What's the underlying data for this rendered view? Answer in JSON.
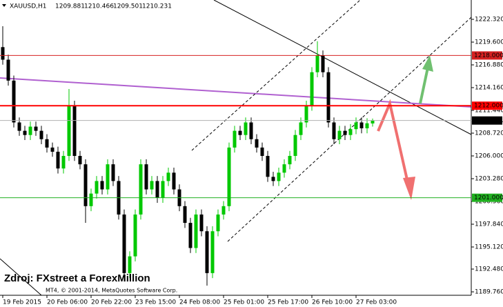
{
  "chart_data": {
    "type": "candlestick",
    "title": "XAUUSD,H1",
    "up_color": "#00c800",
    "down_color": "#000000",
    "x": [
      0,
      1,
      2,
      3,
      4,
      5,
      6,
      7,
      8,
      9,
      10,
      11,
      12,
      13,
      14,
      15,
      16,
      17,
      18,
      19,
      20,
      21,
      22,
      23,
      24,
      25,
      26,
      27,
      28,
      29,
      30,
      31,
      32,
      33,
      34,
      35,
      36,
      37,
      38,
      39,
      40,
      41,
      42,
      43,
      44,
      45,
      46,
      47,
      48,
      49,
      50,
      51,
      52,
      53,
      54,
      55,
      56,
      57,
      58,
      59,
      60,
      61,
      62,
      63,
      64,
      65,
      66,
      67
    ],
    "open": [
      1219,
      1217.5,
      1215,
      1210,
      1209,
      1208.5,
      1209.5,
      1209,
      1208,
      1207,
      1206.5,
      1204.5,
      1206,
      1212,
      1206,
      1205,
      1200,
      1201.5,
      1203,
      1202,
      1205,
      1203,
      1199,
      1192,
      1194,
      1199,
      1205,
      1202,
      1203,
      1201,
      1203,
      1204,
      1202,
      1200,
      1198,
      1195,
      1199,
      1197,
      1192,
      1197,
      1199,
      1200,
      1207,
      1209,
      1208.5,
      1210,
      1208,
      1207,
      1206,
      1203.5,
      1203,
      1204,
      1205,
      1206,
      1208.5,
      1210,
      1212,
      1216,
      1218,
      1216,
      1210,
      1208,
      1209,
      1208.5,
      1209.2,
      1210,
      1209.3,
      1209.881
    ],
    "high": [
      1221.5,
      1218.1,
      1215.6,
      1210.6,
      1209.6,
      1210.1,
      1210.1,
      1209.6,
      1208.6,
      1207.6,
      1207.1,
      1206.6,
      1214,
      1212.6,
      1206.6,
      1205.6,
      1202.1,
      1203.6,
      1203.6,
      1205.6,
      1205.6,
      1203.6,
      1199.6,
      1194.6,
      1199.6,
      1205.6,
      1205.6,
      1203.6,
      1203.6,
      1203.6,
      1204.6,
      1204.6,
      1202.6,
      1200.6,
      1198.6,
      1199.6,
      1199.6,
      1197.6,
      1197.6,
      1199.6,
      1200.6,
      1207.6,
      1209.6,
      1209.6,
      1210.6,
      1210.6,
      1208.6,
      1207.6,
      1206.6,
      1204.1,
      1204.6,
      1205.6,
      1206.6,
      1209.1,
      1210.6,
      1212.6,
      1216.6,
      1219.7,
      1218.6,
      1216.6,
      1210.6,
      1209.6,
      1209.6,
      1209.8,
      1210.6,
      1210.6,
      1210.5,
      1210.466
    ],
    "low": [
      1216.9,
      1214.4,
      1209.4,
      1208.4,
      1207.9,
      1207.9,
      1208.4,
      1207.4,
      1206.4,
      1205.9,
      1203.9,
      1203.9,
      1205.4,
      1205.4,
      1204.4,
      1198,
      1199.4,
      1200.9,
      1201.4,
      1201.4,
      1202.4,
      1198.4,
      1191,
      1191.4,
      1193.4,
      1198.4,
      1201.4,
      1201.4,
      1200.4,
      1200.4,
      1202.4,
      1201.4,
      1199.4,
      1197.4,
      1194.4,
      1194.4,
      1196.4,
      1190.5,
      1191.4,
      1196.4,
      1198.4,
      1199.4,
      1206.4,
      1207.9,
      1207.9,
      1207.4,
      1206.4,
      1205.4,
      1202.9,
      1202.4,
      1202.4,
      1203.4,
      1204.4,
      1205.4,
      1207.9,
      1209.4,
      1211.4,
      1215.4,
      1215.4,
      1209.4,
      1207.4,
      1207.4,
      1207.9,
      1207.9,
      1208.6,
      1208.7,
      1208.7,
      1209.501
    ],
    "close": [
      1217.5,
      1215,
      1210,
      1209,
      1208.5,
      1209.5,
      1209,
      1208,
      1207,
      1206.5,
      1204.5,
      1206,
      1212,
      1206,
      1205,
      1200,
      1201.5,
      1203,
      1202,
      1205,
      1203,
      1199,
      1192,
      1194,
      1199,
      1205,
      1202,
      1203,
      1201,
      1203,
      1204,
      1202,
      1200,
      1198,
      1195,
      1199,
      1197,
      1192,
      1197,
      1199,
      1200,
      1207,
      1209,
      1208.5,
      1210,
      1208,
      1207,
      1206,
      1203.5,
      1203,
      1204,
      1205,
      1206,
      1208.5,
      1210,
      1212,
      1216,
      1218,
      1216,
      1210,
      1208,
      1209,
      1208.5,
      1209.2,
      1210,
      1209.3,
      1209.9,
      1210.231
    ],
    "xlim": [
      -0.5,
      84.875
    ],
    "xticks": [
      {
        "value": 0,
        "label": "19 Feb 2015"
      },
      {
        "value": 8,
        "label": "20 Feb 06:00"
      },
      {
        "value": 16,
        "label": "20 Feb 22:00"
      },
      {
        "value": 24,
        "label": "23 Feb 15:00"
      },
      {
        "value": 32,
        "label": "24 Feb 08:00"
      },
      {
        "value": 40,
        "label": "25 Feb 01:00"
      },
      {
        "value": 48,
        "label": "25 Feb 17:00"
      },
      {
        "value": 56,
        "label": "26 Feb 10:00"
      },
      {
        "value": 64,
        "label": "27 Feb 03:00"
      }
    ],
    "ylim": [
      1189.35,
      1224.63
    ],
    "yticks": [
      {
        "value": 1222.32,
        "label": "1222.320"
      },
      {
        "value": 1219.6,
        "label": "1219.600"
      },
      {
        "value": 1216.88,
        "label": "1216.880"
      },
      {
        "value": 1214.16,
        "label": "1214.160"
      },
      {
        "value": 1211.44,
        "label": "1211.440"
      },
      {
        "value": 1208.72,
        "label": "1208.720"
      },
      {
        "value": 1206,
        "label": "1206.000"
      },
      {
        "value": 1203.28,
        "label": "1203.280"
      },
      {
        "value": 1200.56,
        "label": "1200.560"
      },
      {
        "value": 1197.84,
        "label": "1197.840"
      },
      {
        "value": 1195.12,
        "label": "1195.120"
      },
      {
        "value": 1192.48,
        "label": "1192.480"
      },
      {
        "value": 1189.76,
        "label": "1189.760"
      }
    ],
    "levels": [
      {
        "value": 1218,
        "label": "1218.000",
        "color": "#d42020"
      },
      {
        "value": 1212,
        "label": "1212.000",
        "color": "#ff0000"
      },
      {
        "value": 1201,
        "label": "1201.000",
        "color": "#20b020"
      }
    ],
    "price_line_color": "#b0b0b0",
    "annotations": [
      "Zdroj: FXstreet a ForexMillion",
      "MT4, © 2001-2014, MetaQuotes Software Corp."
    ]
  }
}
